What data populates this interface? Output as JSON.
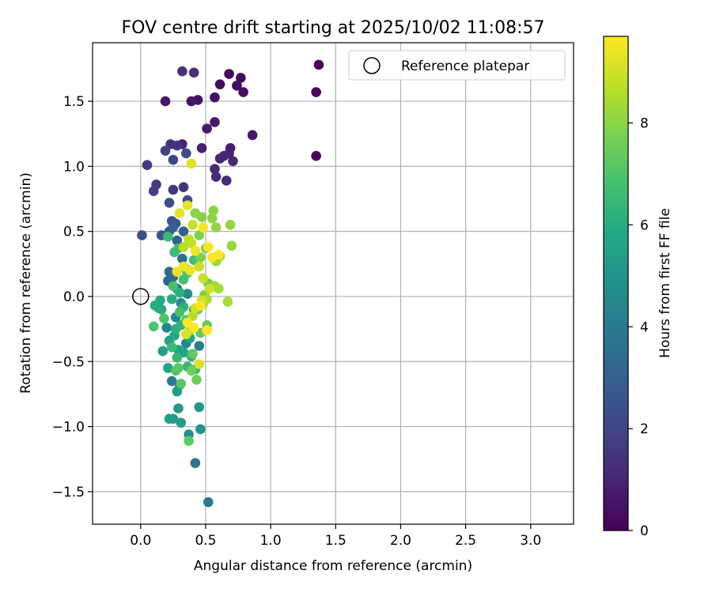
{
  "chart_data": {
    "type": "scatter",
    "title": "FOV centre drift starting at 2025/10/02 11:08:57",
    "xlabel": "Angular distance from reference (arcmin)",
    "ylabel": "Rotation from reference (arcmin)",
    "xlim": [
      -0.37,
      3.33
    ],
    "ylim": [
      -1.75,
      1.95
    ],
    "xticks": [
      0.0,
      0.5,
      1.0,
      1.5,
      2.0,
      2.5,
      3.0
    ],
    "xtick_labels": [
      "0.0",
      "0.5",
      "1.0",
      "1.5",
      "2.0",
      "2.5",
      "3.0"
    ],
    "yticks": [
      -1.5,
      -1.0,
      -0.5,
      0.0,
      0.5,
      1.0,
      1.5
    ],
    "ytick_labels": [
      "−1.5",
      "−1.0",
      "−0.5",
      "0.0",
      "0.5",
      "1.0",
      "1.5"
    ],
    "grid": true,
    "legend_position": "top-right",
    "reference": {
      "label": "Reference platepar",
      "x": 0.0,
      "y": 0.0
    },
    "colorbar": {
      "label": "Hours from first FF file",
      "min": 0,
      "max": 9.7,
      "ticks": [
        0,
        2,
        4,
        6,
        8
      ],
      "tick_labels": [
        "0",
        "2",
        "4",
        "6",
        "8"
      ],
      "colormap": "viridis"
    },
    "points": [
      {
        "x": 1.37,
        "y": 1.78,
        "t": 0.05
      },
      {
        "x": 1.35,
        "y": 1.57,
        "t": 0.1
      },
      {
        "x": 1.35,
        "y": 1.08,
        "t": 0.15
      },
      {
        "x": 0.68,
        "y": 1.71,
        "t": 0.2
      },
      {
        "x": 0.77,
        "y": 1.68,
        "t": 0.25
      },
      {
        "x": 0.61,
        "y": 1.63,
        "t": 0.3
      },
      {
        "x": 0.74,
        "y": 1.62,
        "t": 0.35
      },
      {
        "x": 0.79,
        "y": 1.57,
        "t": 0.4
      },
      {
        "x": 0.57,
        "y": 1.53,
        "t": 0.45
      },
      {
        "x": 0.44,
        "y": 1.51,
        "t": 0.5
      },
      {
        "x": 0.39,
        "y": 1.5,
        "t": 0.55
      },
      {
        "x": 0.19,
        "y": 1.5,
        "t": 0.6
      },
      {
        "x": 0.86,
        "y": 1.24,
        "t": 0.65
      },
      {
        "x": 0.57,
        "y": 1.34,
        "t": 0.7
      },
      {
        "x": 0.51,
        "y": 1.29,
        "t": 0.75
      },
      {
        "x": 0.69,
        "y": 1.14,
        "t": 0.8
      },
      {
        "x": 0.47,
        "y": 1.14,
        "t": 0.85
      },
      {
        "x": 0.32,
        "y": 1.17,
        "t": 0.9
      },
      {
        "x": 0.68,
        "y": 1.1,
        "t": 0.95
      },
      {
        "x": 0.64,
        "y": 1.08,
        "t": 1.0
      },
      {
        "x": 0.71,
        "y": 1.04,
        "t": 1.05
      },
      {
        "x": 0.61,
        "y": 1.06,
        "t": 1.1
      },
      {
        "x": 0.57,
        "y": 0.98,
        "t": 1.15
      },
      {
        "x": 0.58,
        "y": 0.92,
        "t": 1.2
      },
      {
        "x": 0.66,
        "y": 0.89,
        "t": 1.25
      },
      {
        "x": 0.41,
        "y": 1.72,
        "t": 1.3
      },
      {
        "x": 0.32,
        "y": 1.73,
        "t": 1.35
      },
      {
        "x": 0.23,
        "y": 1.17,
        "t": 1.4
      },
      {
        "x": 0.28,
        "y": 1.16,
        "t": 1.45
      },
      {
        "x": 0.33,
        "y": 0.84,
        "t": 1.5
      },
      {
        "x": 0.25,
        "y": 0.82,
        "t": 1.55
      },
      {
        "x": 0.05,
        "y": 1.01,
        "t": 1.6
      },
      {
        "x": 0.12,
        "y": 0.86,
        "t": 1.7
      },
      {
        "x": 0.1,
        "y": 0.81,
        "t": 1.8
      },
      {
        "x": 0.19,
        "y": 1.12,
        "t": 1.9
      },
      {
        "x": 0.25,
        "y": 1.05,
        "t": 2.0
      },
      {
        "x": 0.35,
        "y": 1.1,
        "t": 2.1
      },
      {
        "x": 0.36,
        "y": 0.74,
        "t": 2.2
      },
      {
        "x": 0.22,
        "y": 0.72,
        "t": 2.3
      },
      {
        "x": 0.01,
        "y": 0.47,
        "t": 2.4
      },
      {
        "x": 0.16,
        "y": 0.47,
        "t": 2.5
      },
      {
        "x": 0.24,
        "y": 0.58,
        "t": 2.6
      },
      {
        "x": 0.27,
        "y": 0.56,
        "t": 2.7
      },
      {
        "x": 0.22,
        "y": 0.5,
        "t": 2.8
      },
      {
        "x": 0.25,
        "y": 0.53,
        "t": 2.9
      },
      {
        "x": 0.33,
        "y": 0.5,
        "t": 3.0
      },
      {
        "x": 0.28,
        "y": 0.43,
        "t": 3.1
      },
      {
        "x": 0.21,
        "y": 0.12,
        "t": 3.2
      },
      {
        "x": 0.22,
        "y": 0.19,
        "t": 3.3
      },
      {
        "x": 0.25,
        "y": 0.15,
        "t": 3.4
      },
      {
        "x": 0.32,
        "y": 0.29,
        "t": 3.5
      },
      {
        "x": 0.35,
        "y": 0.21,
        "t": 3.6
      },
      {
        "x": 0.28,
        "y": 0.06,
        "t": 3.7
      },
      {
        "x": 0.42,
        "y": -1.28,
        "t": 3.8
      },
      {
        "x": 0.52,
        "y": -1.58,
        "t": 3.9
      },
      {
        "x": 0.24,
        "y": -0.65,
        "t": 4.0
      },
      {
        "x": 0.3,
        "y": -0.68,
        "t": 4.1
      },
      {
        "x": 0.45,
        "y": -0.38,
        "t": 4.2
      },
      {
        "x": 0.35,
        "y": -0.36,
        "t": 4.3
      },
      {
        "x": 0.2,
        "y": -0.24,
        "t": 4.4
      },
      {
        "x": 0.27,
        "y": -0.16,
        "t": 4.5
      },
      {
        "x": 0.31,
        "y": -0.05,
        "t": 4.6
      },
      {
        "x": 0.36,
        "y": 0.02,
        "t": 4.7
      },
      {
        "x": 0.41,
        "y": -0.1,
        "t": 4.8
      },
      {
        "x": 0.37,
        "y": -1.06,
        "t": 4.9
      },
      {
        "x": 0.46,
        "y": -1.02,
        "t": 5.0
      },
      {
        "x": 0.45,
        "y": -0.85,
        "t": 5.1
      },
      {
        "x": 0.29,
        "y": -0.86,
        "t": 5.2
      },
      {
        "x": 0.25,
        "y": -0.94,
        "t": 5.3
      },
      {
        "x": 0.31,
        "y": -0.97,
        "t": 5.35
      },
      {
        "x": 0.22,
        "y": -0.94,
        "t": 5.4
      },
      {
        "x": 0.28,
        "y": -0.73,
        "t": 5.45
      },
      {
        "x": 0.17,
        "y": -0.42,
        "t": 5.5
      },
      {
        "x": 0.22,
        "y": -0.34,
        "t": 5.55
      },
      {
        "x": 0.21,
        "y": -0.55,
        "t": 5.6
      },
      {
        "x": 0.29,
        "y": -0.41,
        "t": 5.65
      },
      {
        "x": 0.33,
        "y": -0.43,
        "t": 5.7
      },
      {
        "x": 0.38,
        "y": -0.32,
        "t": 5.75
      },
      {
        "x": 0.26,
        "y": -0.3,
        "t": 5.8
      },
      {
        "x": 0.15,
        "y": -0.03,
        "t": 5.85
      },
      {
        "x": 0.14,
        "y": -0.09,
        "t": 5.9
      },
      {
        "x": 0.11,
        "y": -0.07,
        "t": 5.95
      },
      {
        "x": 0.16,
        "y": -0.1,
        "t": 6.0
      },
      {
        "x": 0.24,
        "y": -0.02,
        "t": 6.05
      },
      {
        "x": 0.3,
        "y": 0.03,
        "t": 6.1
      },
      {
        "x": 0.33,
        "y": -0.08,
        "t": 6.15
      },
      {
        "x": 0.27,
        "y": -0.25,
        "t": 6.2
      },
      {
        "x": 0.31,
        "y": -0.22,
        "t": 6.25
      },
      {
        "x": 0.39,
        "y": -0.46,
        "t": 6.3
      },
      {
        "x": 0.42,
        "y": -0.56,
        "t": 6.35
      },
      {
        "x": 0.36,
        "y": -0.54,
        "t": 6.4
      },
      {
        "x": 0.28,
        "y": -0.47,
        "t": 6.45
      },
      {
        "x": 0.24,
        "y": -0.39,
        "t": 6.5
      },
      {
        "x": 0.21,
        "y": 0.46,
        "t": 6.55
      },
      {
        "x": 0.26,
        "y": 0.34,
        "t": 6.6
      },
      {
        "x": 0.29,
        "y": 0.37,
        "t": 6.65
      },
      {
        "x": 0.41,
        "y": 0.28,
        "t": 6.7
      },
      {
        "x": 0.36,
        "y": 0.18,
        "t": 6.75
      },
      {
        "x": 0.33,
        "y": 0.13,
        "t": 6.8
      },
      {
        "x": 0.25,
        "y": 0.08,
        "t": 6.85
      },
      {
        "x": 0.3,
        "y": -0.12,
        "t": 6.9
      },
      {
        "x": 0.35,
        "y": -0.18,
        "t": 6.95
      },
      {
        "x": 0.1,
        "y": -0.23,
        "t": 7.0
      },
      {
        "x": 0.18,
        "y": -0.17,
        "t": 7.05
      },
      {
        "x": 0.27,
        "y": -0.57,
        "t": 7.1
      },
      {
        "x": 0.31,
        "y": -0.67,
        "t": 7.15
      },
      {
        "x": 0.29,
        "y": -0.55,
        "t": 7.2
      },
      {
        "x": 0.37,
        "y": -1.11,
        "t": 7.25
      },
      {
        "x": 0.4,
        "y": -0.44,
        "t": 7.3
      },
      {
        "x": 0.46,
        "y": -0.28,
        "t": 7.35
      },
      {
        "x": 0.44,
        "y": -0.1,
        "t": 7.4
      },
      {
        "x": 0.51,
        "y": -0.22,
        "t": 7.45
      },
      {
        "x": 0.51,
        "y": -0.25,
        "t": 7.5
      },
      {
        "x": 0.43,
        "y": -0.64,
        "t": 7.55
      },
      {
        "x": 0.39,
        "y": -0.57,
        "t": 7.6
      },
      {
        "x": 0.52,
        "y": 0.1,
        "t": 7.65
      },
      {
        "x": 0.49,
        "y": 0.01,
        "t": 7.7
      },
      {
        "x": 0.46,
        "y": 0.3,
        "t": 7.75
      },
      {
        "x": 0.5,
        "y": 0.37,
        "t": 7.8
      },
      {
        "x": 0.45,
        "y": 0.47,
        "t": 7.85
      },
      {
        "x": 0.47,
        "y": 0.61,
        "t": 7.9
      },
      {
        "x": 0.42,
        "y": 0.64,
        "t": 7.95
      },
      {
        "x": 0.56,
        "y": 0.66,
        "t": 8.0
      },
      {
        "x": 0.55,
        "y": 0.6,
        "t": 8.05
      },
      {
        "x": 0.58,
        "y": 0.53,
        "t": 8.1
      },
      {
        "x": 0.69,
        "y": 0.55,
        "t": 8.15
      },
      {
        "x": 0.7,
        "y": 0.39,
        "t": 8.2
      },
      {
        "x": 0.61,
        "y": 0.31,
        "t": 8.25
      },
      {
        "x": 0.58,
        "y": 0.27,
        "t": 8.3
      },
      {
        "x": 0.57,
        "y": 0.08,
        "t": 8.35
      },
      {
        "x": 0.6,
        "y": 0.06,
        "t": 8.4
      },
      {
        "x": 0.67,
        "y": -0.04,
        "t": 8.45
      },
      {
        "x": 0.51,
        "y": -0.02,
        "t": 8.5
      },
      {
        "x": 0.48,
        "y": -0.06,
        "t": 8.55
      },
      {
        "x": 0.4,
        "y": -0.15,
        "t": 8.6
      },
      {
        "x": 0.38,
        "y": -0.26,
        "t": 8.65
      },
      {
        "x": 0.33,
        "y": 0.38,
        "t": 8.7
      },
      {
        "x": 0.37,
        "y": 0.44,
        "t": 8.75
      },
      {
        "x": 0.39,
        "y": 0.41,
        "t": 8.8
      },
      {
        "x": 0.4,
        "y": 0.55,
        "t": 8.85
      },
      {
        "x": 0.45,
        "y": 0.23,
        "t": 8.9
      },
      {
        "x": 0.48,
        "y": 0.14,
        "t": 8.95
      },
      {
        "x": 0.53,
        "y": 0.06,
        "t": 9.0
      },
      {
        "x": 0.47,
        "y": -0.03,
        "t": 9.05
      },
      {
        "x": 0.42,
        "y": -0.09,
        "t": 9.1
      },
      {
        "x": 0.35,
        "y": -0.29,
        "t": 9.15
      },
      {
        "x": 0.45,
        "y": -0.52,
        "t": 9.2
      },
      {
        "x": 0.39,
        "y": 1.02,
        "t": 9.25
      },
      {
        "x": 0.36,
        "y": 0.7,
        "t": 9.3
      },
      {
        "x": 0.3,
        "y": 0.64,
        "t": 9.35
      },
      {
        "x": 0.28,
        "y": 0.19,
        "t": 9.4
      },
      {
        "x": 0.33,
        "y": 0.23,
        "t": 9.45
      },
      {
        "x": 0.38,
        "y": 0.2,
        "t": 9.5
      },
      {
        "x": 0.42,
        "y": 0.35,
        "t": 9.55
      },
      {
        "x": 0.48,
        "y": 0.53,
        "t": 9.6
      },
      {
        "x": 0.52,
        "y": 0.38,
        "t": 9.62
      },
      {
        "x": 0.55,
        "y": 0.3,
        "t": 9.65
      },
      {
        "x": 0.6,
        "y": 0.32,
        "t": 9.67
      },
      {
        "x": 0.46,
        "y": -0.07,
        "t": 9.7
      },
      {
        "x": 0.51,
        "y": -0.26,
        "t": 9.7
      },
      {
        "x": 0.41,
        "y": -0.24,
        "t": 9.68
      },
      {
        "x": 0.36,
        "y": -0.2,
        "t": 9.66
      }
    ]
  }
}
